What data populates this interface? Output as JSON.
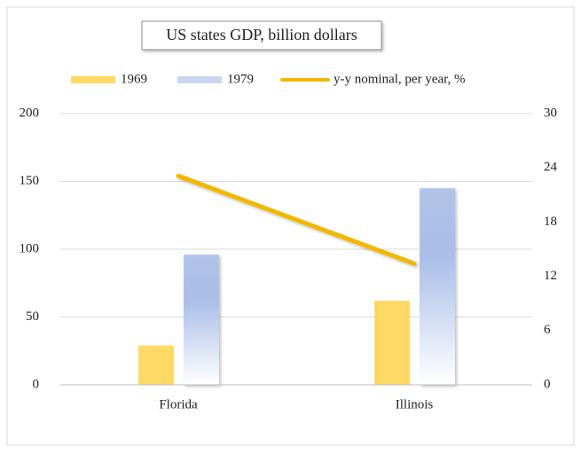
{
  "chart_data": {
    "type": "bar",
    "title": "US states GDP, billion dollars",
    "categories": [
      "Florida",
      "Illinois"
    ],
    "series": [
      {
        "name": "1969",
        "color": "#ffd966",
        "values": [
          29,
          62
        ]
      },
      {
        "name": "1979",
        "color": "#a9bee8",
        "values": [
          96,
          145
        ]
      },
      {
        "name": "y-y nominal, per year, %",
        "type": "line",
        "axis": "y2",
        "color": "#f2b800",
        "values": [
          23.1,
          13.4
        ]
      }
    ],
    "ylim": [
      0,
      200
    ],
    "yticks": [
      0,
      50,
      100,
      150,
      200
    ],
    "y2lim": [
      0,
      30
    ],
    "y2ticks": [
      0,
      6,
      12,
      18,
      24,
      30
    ],
    "grid": true,
    "legend": "top"
  }
}
